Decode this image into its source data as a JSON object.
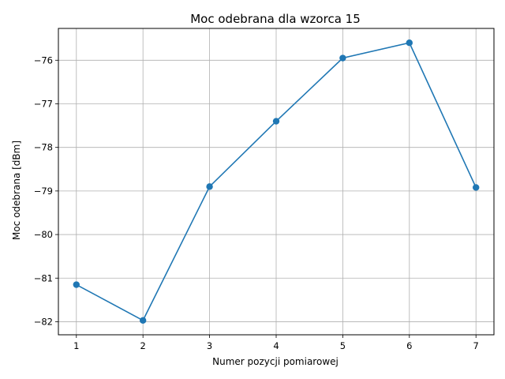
{
  "chart_data": {
    "type": "line",
    "title": "Moc odebrana dla wzorca 15",
    "xlabel": "Numer pozycji pomiarowej",
    "ylabel": "Moc odebrana [dBm]",
    "x": [
      1,
      2,
      3,
      4,
      5,
      6,
      7
    ],
    "y": [
      -81.15,
      -81.97,
      -78.9,
      -77.4,
      -75.95,
      -75.6,
      -78.92
    ],
    "xlim": [
      0.73,
      7.27
    ],
    "ylim": [
      -82.3,
      -75.27
    ],
    "xticks": [
      1,
      2,
      3,
      4,
      5,
      6,
      7
    ],
    "yticks": [
      -82,
      -81,
      -80,
      -79,
      -78,
      -77,
      -76
    ],
    "ytick_labels": [
      "−82",
      "−81",
      "−80",
      "−79",
      "−78",
      "−77",
      "−76"
    ],
    "grid": true,
    "marker": "circle",
    "line_color": "#1f77b4"
  }
}
